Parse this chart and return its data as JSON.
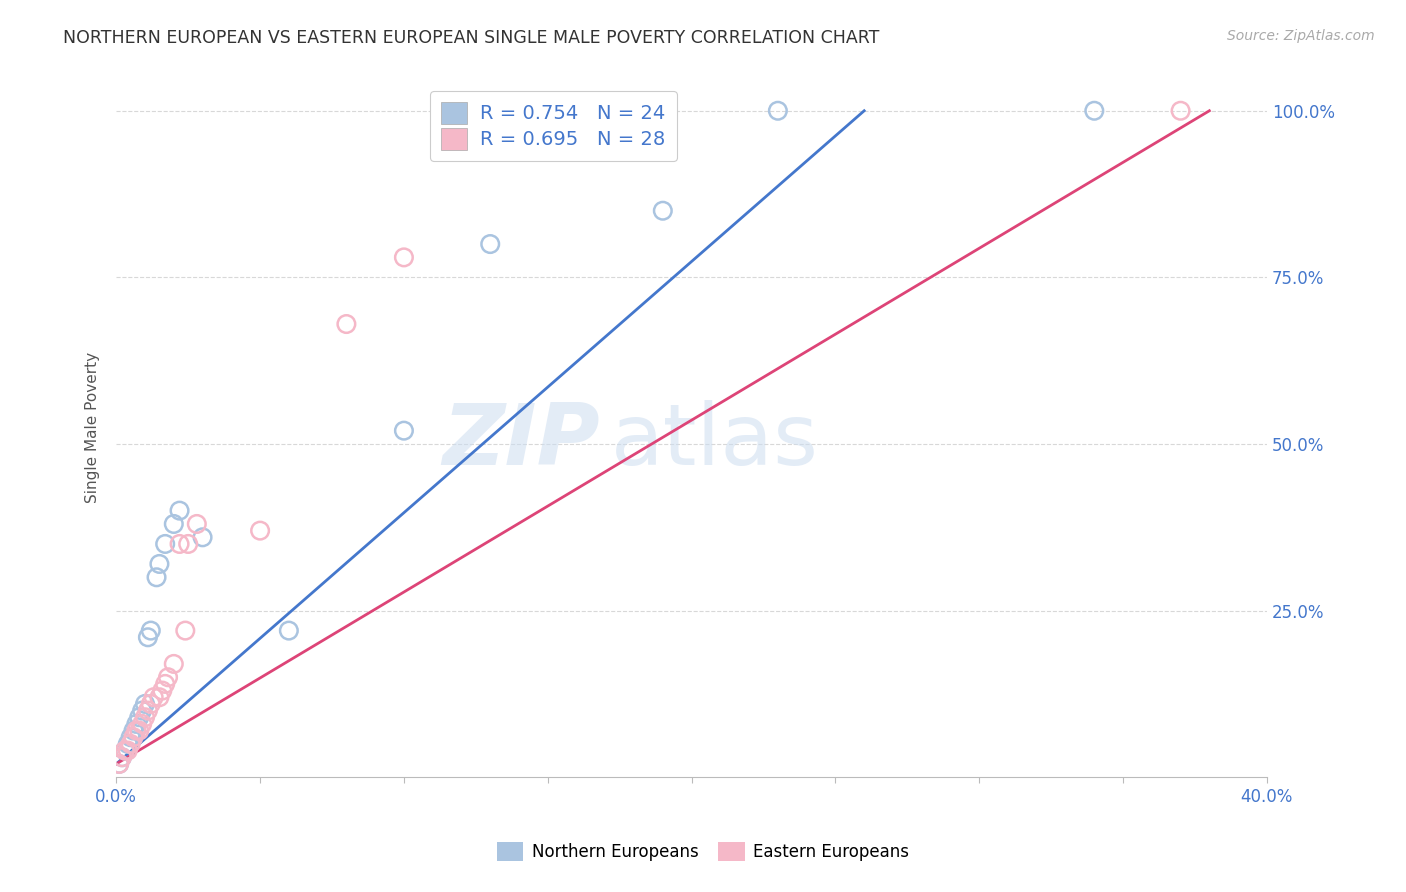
{
  "title": "NORTHERN EUROPEAN VS EASTERN EUROPEAN SINGLE MALE POVERTY CORRELATION CHART",
  "source": "Source: ZipAtlas.com",
  "ylabel": "Single Male Poverty",
  "xlim": [
    0.0,
    0.4
  ],
  "ylim": [
    0.0,
    1.05
  ],
  "background_color": "#ffffff",
  "grid_color": "#d8d8d8",
  "blue_scatter_color": "#aac4e0",
  "pink_scatter_color": "#f5b8c8",
  "blue_line_color": "#4477cc",
  "pink_line_color": "#dd4477",
  "blue_R": 0.754,
  "blue_N": 24,
  "pink_R": 0.695,
  "pink_N": 28,
  "blue_line_x0": 0.0,
  "blue_line_y0": 0.02,
  "blue_line_x1": 0.26,
  "blue_line_y1": 1.0,
  "pink_line_x0": 0.0,
  "pink_line_y0": 0.02,
  "pink_line_x1": 0.38,
  "pink_line_y1": 1.0,
  "northern_x": [
    0.001,
    0.002,
    0.003,
    0.004,
    0.005,
    0.006,
    0.007,
    0.008,
    0.009,
    0.01,
    0.011,
    0.012,
    0.014,
    0.015,
    0.017,
    0.02,
    0.022,
    0.03,
    0.06,
    0.1,
    0.13,
    0.19,
    0.23,
    0.34
  ],
  "northern_y": [
    0.02,
    0.03,
    0.04,
    0.05,
    0.06,
    0.07,
    0.08,
    0.09,
    0.1,
    0.11,
    0.21,
    0.22,
    0.3,
    0.32,
    0.35,
    0.38,
    0.4,
    0.36,
    0.22,
    0.52,
    0.8,
    0.85,
    1.0,
    1.0
  ],
  "eastern_x": [
    0.001,
    0.002,
    0.003,
    0.004,
    0.005,
    0.006,
    0.007,
    0.008,
    0.009,
    0.01,
    0.011,
    0.012,
    0.013,
    0.015,
    0.016,
    0.017,
    0.018,
    0.02,
    0.022,
    0.024,
    0.025,
    0.028,
    0.05,
    0.08,
    0.1,
    0.12,
    0.15,
    0.37
  ],
  "eastern_y": [
    0.02,
    0.03,
    0.04,
    0.04,
    0.05,
    0.06,
    0.07,
    0.07,
    0.08,
    0.09,
    0.1,
    0.11,
    0.12,
    0.12,
    0.13,
    0.14,
    0.15,
    0.17,
    0.35,
    0.22,
    0.35,
    0.38,
    0.37,
    0.68,
    0.78,
    1.0,
    1.0,
    1.0
  ],
  "watermark_zip": "ZIP",
  "watermark_atlas": "atlas",
  "legend_blue_label": "Northern Europeans",
  "legend_pink_label": "Eastern Europeans"
}
